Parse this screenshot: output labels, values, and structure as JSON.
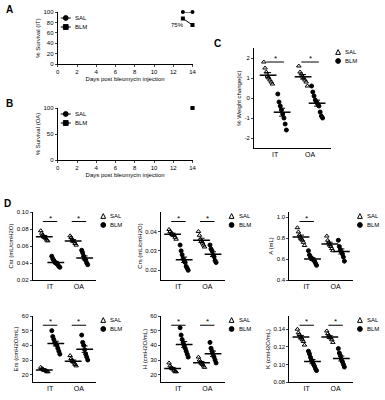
{
  "chart_data": [
    {
      "type": "line",
      "title": "A",
      "x_label": "Days post bleomycin injection",
      "y_label": "% Survival (IT)",
      "x": [
        13,
        14
      ],
      "xlim": [
        0,
        14
      ],
      "xticks": [
        0,
        2,
        4,
        6,
        8,
        10,
        12,
        14
      ],
      "ylim": [
        0,
        100
      ],
      "yticks": [
        0,
        20,
        40,
        60,
        80,
        100
      ],
      "legend": "top left",
      "grid": false,
      "series": [
        {
          "name": "SAL",
          "color": "#000000",
          "marker": "circle",
          "line_style": "solid",
          "values": [
            100,
            100
          ]
        },
        {
          "name": "BLM",
          "color": "#000000",
          "marker": "square",
          "line_style": "solid",
          "values": [
            87.5,
            75
          ]
        }
      ],
      "annotations": [
        {
          "text": "75%",
          "x": 14,
          "y": 75
        }
      ]
    },
    {
      "type": "line",
      "title": "B",
      "x_label": "Days post bleomycin injection",
      "y_label": "% Survival (OA)",
      "x": [
        14
      ],
      "xlim": [
        0,
        14
      ],
      "xticks": [
        0,
        2,
        4,
        6,
        8,
        10,
        12,
        14
      ],
      "ylim": [
        0,
        100
      ],
      "yticks": [
        0,
        50,
        100
      ],
      "legend": "top left",
      "grid": false,
      "series": [
        {
          "name": "SAL",
          "color": "#000000",
          "marker": "circle",
          "line_style": "solid",
          "values": [
            100
          ]
        },
        {
          "name": "BLM",
          "color": "#000000",
          "marker": "square",
          "line_style": "solid",
          "values": [
            100
          ]
        }
      ]
    },
    {
      "type": "dot",
      "title": "C",
      "y_label": "% Weight change(ic)",
      "categories": [
        "IT",
        "OA"
      ],
      "ylim": [
        -2.5,
        2.5
      ],
      "yticks": [
        -2,
        -1,
        0,
        1,
        2
      ],
      "legend": "right",
      "grid": false,
      "series": [
        {
          "name": "SAL",
          "color": "#000000",
          "marker": "triangle-open",
          "values": [
            [
              1.8,
              1.5,
              1.3,
              1.1,
              1.0,
              0.9,
              0.8,
              0.7
            ],
            [
              1.6,
              1.3,
              1.2,
              1.1,
              1.0,
              0.9,
              0.8,
              0.6
            ]
          ],
          "mean": [
            1.14,
            1.06
          ],
          "sem": [
            0.13,
            0.11
          ]
        },
        {
          "name": "BLM",
          "color": "#000000",
          "marker": "circle",
          "values": [
            [
              0.2,
              -0.2,
              -0.4,
              -0.6,
              -0.8,
              -1.0,
              -1.3,
              -1.6
            ],
            [
              0.6,
              0.3,
              0.1,
              -0.1,
              -0.2,
              -0.3,
              -0.4,
              -0.7,
              -0.9,
              -1.0
            ]
          ],
          "mean": [
            -0.71,
            -0.26
          ],
          "sem": [
            0.2,
            0.15
          ]
        }
      ],
      "annotations": [
        {
          "text": "*",
          "x": "IT"
        },
        {
          "text": "*",
          "x": "OA"
        }
      ]
    },
    {
      "type": "dot",
      "title": "D",
      "y_label": "Cst (mL/cmH2O)",
      "categories": [
        "IT",
        "OA"
      ],
      "ylim": [
        0.02,
        0.1
      ],
      "yticks": [
        0.02,
        0.04,
        0.06,
        0.08,
        {
          "value": 0.1,
          "label": "0.10"
        }
      ],
      "legend": "right",
      "grid": false,
      "series": [
        {
          "name": "SAL",
          "color": "#000000",
          "marker": "triangle-open",
          "values": [
            [
              0.078,
              0.075,
              0.073,
              0.071,
              0.07,
              0.069,
              0.067,
              0.066
            ],
            [
              0.072,
              0.07,
              0.068,
              0.066,
              0.065,
              0.063,
              0.061
            ]
          ],
          "mean": [
            0.071,
            0.066
          ],
          "sem": [
            0.0014,
            0.0014
          ]
        },
        {
          "name": "BLM",
          "color": "#000000",
          "marker": "circle",
          "values": [
            [
              0.048,
              0.045,
              0.043,
              0.041,
              0.04,
              0.039,
              0.038,
              0.036,
              0.035
            ],
            [
              0.055,
              0.052,
              0.048,
              0.045,
              0.043,
              0.04,
              0.038
            ]
          ],
          "mean": [
            0.0406,
            0.046
          ],
          "sem": [
            0.0014,
            0.0023
          ]
        }
      ],
      "annotations": [
        {
          "text": "*",
          "x": "IT"
        },
        {
          "text": "*",
          "x": "OA"
        }
      ]
    },
    {
      "type": "dot",
      "y_label": "Crs (mL/cmH2O)",
      "categories": [
        "IT",
        "OA"
      ],
      "ylim": [
        0.015,
        0.05
      ],
      "yticks": [
        0.02,
        0.03,
        0.04
      ],
      "legend": "right",
      "grid": false,
      "series": [
        {
          "name": "SAL",
          "color": "#000000",
          "marker": "triangle-open",
          "values": [
            [
              0.041,
              0.04,
              0.039,
              0.039,
              0.038,
              0.038,
              0.037,
              0.036
            ],
            [
              0.04,
              0.038,
              0.036,
              0.035,
              0.034,
              0.033,
              0.032
            ]
          ],
          "mean": [
            0.0385,
            0.0354
          ],
          "sem": [
            0.0006,
            0.0011
          ]
        },
        {
          "name": "BLM",
          "color": "#000000",
          "marker": "circle",
          "values": [
            [
              0.033,
              0.03,
              0.028,
              0.026,
              0.025,
              0.024,
              0.022,
              0.021,
              0.02
            ],
            [
              0.033,
              0.031,
              0.03,
              0.028,
              0.027,
              0.025,
              0.024
            ]
          ],
          "mean": [
            0.0254,
            0.0283
          ],
          "sem": [
            0.0014,
            0.0012
          ]
        }
      ],
      "annotations": [
        {
          "text": "*",
          "x": "IT"
        },
        {
          "text": "*",
          "x": "OA"
        }
      ]
    },
    {
      "type": "dot",
      "y_label": "A (mL)",
      "categories": [
        "IT",
        "OA"
      ],
      "ylim": [
        0.4,
        1.05
      ],
      "yticks": [
        0.4,
        0.6,
        0.8,
        {
          "value": 1,
          "label": "1.0"
        }
      ],
      "legend": "right",
      "grid": false,
      "series": [
        {
          "name": "SAL",
          "color": "#000000",
          "marker": "triangle-open",
          "values": [
            [
              0.9,
              0.86,
              0.83,
              0.81,
              0.79,
              0.78,
              0.76,
              0.73
            ],
            [
              0.82,
              0.78,
              0.76,
              0.74,
              0.72,
              0.7,
              0.68
            ]
          ],
          "mean": [
            0.81,
            0.743
          ],
          "sem": [
            0.019,
            0.018
          ]
        },
        {
          "name": "BLM",
          "color": "#000000",
          "marker": "circle",
          "values": [
            [
              0.68,
              0.64,
              0.62,
              0.61,
              0.6,
              0.59,
              0.58,
              0.56,
              0.54
            ],
            [
              0.78,
              0.72,
              0.69,
              0.67,
              0.65,
              0.62,
              0.58
            ]
          ],
          "mean": [
            0.6,
            0.673
          ],
          "sem": [
            0.013,
            0.024
          ]
        }
      ],
      "annotations": [
        {
          "text": "*",
          "x": "IT"
        }
      ]
    },
    {
      "type": "dot",
      "y_label": "Ers (cmH2O/mL)",
      "categories": [
        "IT",
        "OA"
      ],
      "ylim": [
        15,
        60
      ],
      "yticks": [
        20,
        30,
        40,
        50,
        60
      ],
      "legend": "right",
      "grid": false,
      "series": [
        {
          "name": "SAL",
          "color": "#000000",
          "marker": "triangle-open",
          "values": [
            [
              25,
              24,
              24,
              23,
              23,
              23,
              22,
              22
            ],
            [
              33,
              31,
              30,
              29,
              28,
              27,
              26
            ]
          ],
          "mean": [
            23.25,
            29.1
          ],
          "sem": [
            0.37,
            0.9
          ]
        },
        {
          "name": "BLM",
          "color": "#000000",
          "marker": "circle",
          "values": [
            [
              50,
              46,
              44,
              42,
              41,
              40,
              38,
              36,
              34
            ],
            [
              47,
              42,
              40,
              37,
              34,
              32,
              30
            ]
          ],
          "mean": [
            41.2,
            37.4
          ],
          "sem": [
            1.6,
            2.2
          ]
        }
      ],
      "annotations": [
        {
          "text": "*",
          "x": "IT"
        },
        {
          "text": "*",
          "x": "OA"
        }
      ]
    },
    {
      "type": "dot",
      "y_label": "H (cmH2O/mL)",
      "categories": [
        "IT",
        "OA"
      ],
      "ylim": [
        15,
        60
      ],
      "yticks": [
        20,
        30,
        40,
        50,
        60
      ],
      "legend": "right",
      "grid": false,
      "series": [
        {
          "name": "SAL",
          "color": "#000000",
          "marker": "triangle-open",
          "values": [
            [
              28,
              26,
              25,
              24,
              24,
              23,
              22,
              22
            ],
            [
              32,
              30,
              29,
              28,
              27,
              26,
              25
            ]
          ],
          "mean": [
            24.25,
            28.1
          ],
          "sem": [
            0.7,
            0.9
          ]
        },
        {
          "name": "BLM",
          "color": "#000000",
          "marker": "circle",
          "values": [
            [
              52,
              47,
              44,
              42,
              40,
              38,
              36,
              34,
              32
            ],
            [
              42,
              38,
              36,
              34,
              32,
              30,
              28
            ]
          ],
          "mean": [
            40.6,
            34.3
          ],
          "sem": [
            2.0,
            1.8
          ]
        }
      ],
      "annotations": [
        {
          "text": "*",
          "x": "IT"
        },
        {
          "text": "*",
          "x": "OA"
        }
      ]
    },
    {
      "type": "dot",
      "y_label": "K (cmH2O/mL)",
      "categories": [
        "IT",
        "OA"
      ],
      "ylim": [
        0.08,
        0.155
      ],
      "yticks": [
        0.08,
        {
          "value": 0.1,
          "label": "0.10"
        },
        0.12,
        0.14
      ],
      "legend": "right",
      "grid": false,
      "series": [
        {
          "name": "SAL",
          "color": "#000000",
          "marker": "triangle-open",
          "values": [
            [
              0.14,
              0.136,
              0.134,
              0.132,
              0.13,
              0.128,
              0.126,
              0.122
            ],
            [
              0.138,
              0.135,
              0.133,
              0.131,
              0.13,
              0.128,
              0.125
            ]
          ],
          "mean": [
            0.131,
            0.131
          ],
          "sem": [
            0.002,
            0.0016
          ]
        },
        {
          "name": "BLM",
          "color": "#000000",
          "marker": "circle",
          "values": [
            [
              0.115,
              0.112,
              0.108,
              0.105,
              0.103,
              0.1,
              0.098,
              0.095,
              0.093
            ],
            [
              0.118,
              0.113,
              0.11,
              0.106,
              0.103,
              0.1,
              0.097
            ]
          ],
          "mean": [
            0.1032,
            0.1067
          ],
          "sem": [
            0.0024,
            0.0028
          ]
        }
      ],
      "annotations": [
        {
          "text": "*",
          "x": "IT"
        },
        {
          "text": "*",
          "x": "OA"
        }
      ]
    }
  ]
}
